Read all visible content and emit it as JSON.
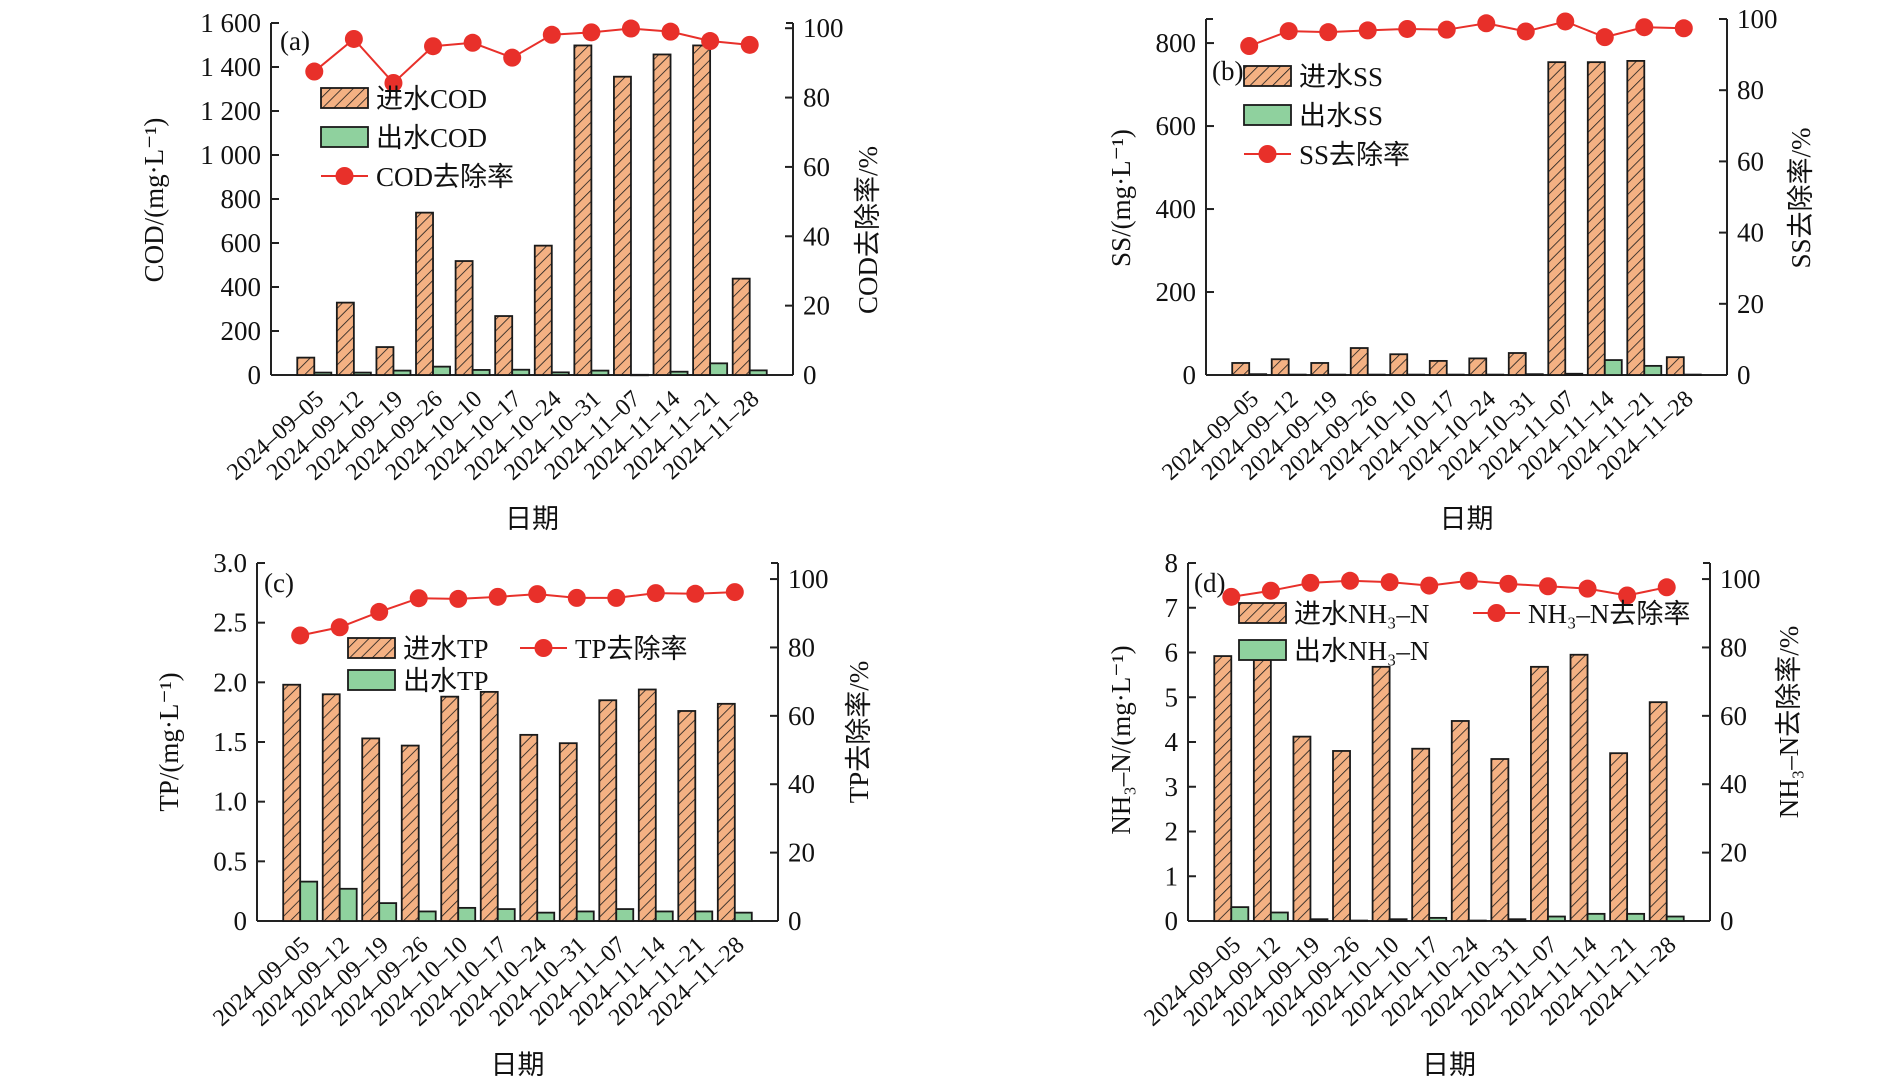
{
  "figure": {
    "x_axis_title": "日期",
    "colors": {
      "influent": "#F4B183",
      "effluent": "#8FD19E",
      "removal": "#E8302A",
      "axis": "#222222"
    }
  },
  "chart_data": [
    {
      "type": "bar",
      "panel": "(a)",
      "categories": [
        "2024-09-05",
        "2024-09-12",
        "2024-09-19",
        "2024-09-26",
        "2024-10-10",
        "2024-10-17",
        "2024-10-24",
        "2024-10-31",
        "2024-11-07",
        "2024-11-14",
        "2024-11-21",
        "2024-11-28"
      ],
      "category_labels": [
        "2024–09–05",
        "2024–09–12",
        "2024–09–19",
        "2024–09–26",
        "2024–10–10",
        "2024–10–17",
        "2024–10–24",
        "2024–10–31",
        "2024–11–07",
        "2024–11–14",
        "2024–11–21",
        "2024–11–28"
      ],
      "xlabel": "日期",
      "ylabel": "COD/(mg·L⁻¹)",
      "ylabel_right": "COD去除率/%",
      "ylim": [
        0,
        1600
      ],
      "yticks": [
        0,
        200,
        400,
        600,
        800,
        1000,
        1200,
        1400,
        1600
      ],
      "ytick_labels": [
        "0",
        "200",
        "400",
        "600",
        "800",
        "1 000",
        "1 200",
        "1 400",
        "1 600"
      ],
      "ylim_right": [
        0,
        101.5
      ],
      "yticks_right": [
        0,
        20,
        40,
        60,
        80,
        100
      ],
      "legend": {
        "position": "upper-left",
        "layout": "column",
        "entries": [
          "进水COD",
          "出水COD",
          "COD去除率"
        ]
      },
      "series": [
        {
          "name": "进水COD",
          "kind": "bar",
          "values": [
            79,
            329,
            127,
            738,
            518,
            268,
            588,
            1498,
            1356,
            1457,
            1498,
            438
          ]
        },
        {
          "name": "出水COD",
          "kind": "bar",
          "values": [
            11,
            11,
            20,
            38,
            23,
            24,
            12,
            20,
            1,
            15,
            53,
            21
          ]
        },
        {
          "name": "COD去除率",
          "kind": "line",
          "axis": "right",
          "values": [
            87.5,
            96.9,
            84.2,
            94.8,
            95.8,
            91.5,
            98.1,
            98.8,
            99.9,
            99.0,
            96.3,
            95.2
          ]
        }
      ]
    },
    {
      "type": "bar",
      "panel": "(b)",
      "categories": [
        "2024-09-05",
        "2024-09-12",
        "2024-09-19",
        "2024-09-26",
        "2024-10-10",
        "2024-10-17",
        "2024-10-24",
        "2024-10-31",
        "2024-11-07",
        "2024-11-14",
        "2024-11-21",
        "2024-11-28"
      ],
      "category_labels": [
        "2024–09–05",
        "2024–09–12",
        "2024–09–19",
        "2024–09–26",
        "2024–10–10",
        "2024–10–17",
        "2024–10–24",
        "2024–10–31",
        "2024–11–07",
        "2024–11–14",
        "2024–11–21",
        "2024–11–28"
      ],
      "xlabel": "日期",
      "ylabel": "SS/(mg·L⁻¹)",
      "ylabel_right": "SS去除率/%",
      "ylim": [
        0,
        858
      ],
      "yticks": [
        0,
        200,
        400,
        600,
        800
      ],
      "ytick_labels": [
        "0",
        "200",
        "400",
        "600",
        "800"
      ],
      "ylim_right": [
        0,
        100
      ],
      "yticks_right": [
        0,
        20,
        40,
        60,
        80,
        100
      ],
      "legend": {
        "position": "upper-left",
        "layout": "column",
        "entries": [
          "进水SS",
          "出水SS",
          "SS去除率"
        ]
      },
      "series": [
        {
          "name": "进水SS",
          "kind": "bar",
          "values": [
            29,
            38,
            29,
            65,
            50,
            34,
            40,
            53,
            754,
            754,
            757,
            43
          ]
        },
        {
          "name": "出水SS",
          "kind": "bar",
          "values": [
            2,
            1,
            1,
            1,
            1,
            1,
            1,
            2,
            3,
            36,
            22,
            1
          ]
        },
        {
          "name": "SS去除率",
          "kind": "line",
          "axis": "right",
          "values": [
            92.4,
            96.6,
            96.3,
            96.8,
            97.2,
            97.0,
            98.8,
            96.5,
            99.3,
            94.9,
            97.7,
            97.4
          ]
        }
      ]
    },
    {
      "type": "bar",
      "panel": "(c)",
      "categories": [
        "2024-09-05",
        "2024-09-12",
        "2024-09-19",
        "2024-09-26",
        "2024-10-10",
        "2024-10-17",
        "2024-10-24",
        "2024-10-31",
        "2024-11-07",
        "2024-11-14",
        "2024-11-21",
        "2024-11-28"
      ],
      "category_labels": [
        "2024–09–05",
        "2024–09–12",
        "2024–09–19",
        "2024–09–26",
        "2024–10–10",
        "2024–10–17",
        "2024–10–24",
        "2024–10–31",
        "2024–11–07",
        "2024–11–14",
        "2024–11–21",
        "2024–11–28"
      ],
      "xlabel": "日期",
      "ylabel": "TP/(mg·L⁻¹)",
      "ylabel_right": "TP去除率/%",
      "ylim": [
        0,
        3.0
      ],
      "yticks": [
        0,
        0.5,
        1.0,
        1.5,
        2.0,
        2.5,
        3.0
      ],
      "ytick_labels": [
        "0",
        "0.5",
        "1.0",
        "1.5",
        "2.0",
        "2.5",
        "3.0"
      ],
      "ylim_right": [
        0,
        104.7
      ],
      "yticks_right": [
        0,
        20,
        40,
        60,
        80,
        100
      ],
      "legend": {
        "position": "upper-center",
        "layout": "split",
        "entries": [
          "进水TP",
          "出水TP",
          "TP去除率"
        ]
      },
      "series": [
        {
          "name": "进水TP",
          "kind": "bar",
          "values": [
            1.98,
            1.9,
            1.53,
            1.47,
            1.88,
            1.92,
            1.56,
            1.49,
            1.85,
            1.94,
            1.76,
            1.82
          ]
        },
        {
          "name": "出水TP",
          "kind": "bar",
          "values": [
            0.33,
            0.27,
            0.15,
            0.08,
            0.11,
            0.1,
            0.07,
            0.08,
            0.1,
            0.08,
            0.08,
            0.07
          ]
        },
        {
          "name": "TP去除率",
          "kind": "line",
          "axis": "right",
          "values": [
            83.5,
            85.9,
            90.4,
            94.4,
            94.2,
            94.8,
            95.6,
            94.5,
            94.5,
            95.9,
            95.7,
            96.2
          ]
        }
      ]
    },
    {
      "type": "bar",
      "panel": "(d)",
      "categories": [
        "2024-09-05",
        "2024-09-12",
        "2024-09-19",
        "2024-09-26",
        "2024-10-10",
        "2024-10-17",
        "2024-10-24",
        "2024-10-31",
        "2024-11-07",
        "2024-11-14",
        "2024-11-21",
        "2024-11-28"
      ],
      "category_labels": [
        "2024–09–05",
        "2024–09–12",
        "2024–09–19",
        "2024–09–26",
        "2024–10–10",
        "2024–10–17",
        "2024–10–24",
        "2024–10–31",
        "2024–11–07",
        "2024–11–14",
        "2024–11–21",
        "2024–11–28"
      ],
      "xlabel": "日期",
      "ylabel": "NH₃–N/(mg·L⁻¹)",
      "ylabel_right": "NH₃–N去除率/%",
      "ylim": [
        0,
        8
      ],
      "yticks": [
        0,
        1,
        2,
        3,
        4,
        5,
        6,
        7,
        8
      ],
      "ytick_labels": [
        "0",
        "1",
        "2",
        "3",
        "4",
        "5",
        "6",
        "7",
        "8"
      ],
      "ylim_right": [
        0,
        104.7
      ],
      "yticks_right": [
        0,
        20,
        40,
        60,
        80,
        100
      ],
      "legend": {
        "position": "upper-center",
        "layout": "split",
        "entries": [
          "进水NH₃–N",
          "出水NH₃–N",
          "NH₃–N去除率"
        ]
      },
      "series": [
        {
          "name": "进水NH₃–N",
          "kind": "bar",
          "values": [
            5.92,
            5.83,
            4.12,
            3.8,
            5.68,
            3.85,
            4.47,
            3.62,
            5.68,
            5.95,
            3.75,
            4.89
          ]
        },
        {
          "name": "出水NH₃–N",
          "kind": "bar",
          "values": [
            0.31,
            0.19,
            0.04,
            0.01,
            0.04,
            0.07,
            0.01,
            0.04,
            0.1,
            0.16,
            0.16,
            0.1
          ]
        },
        {
          "name": "NH₃–N去除率",
          "kind": "line",
          "axis": "right",
          "values": [
            94.8,
            96.6,
            98.9,
            99.5,
            99.1,
            98.1,
            99.5,
            98.6,
            97.9,
            97.2,
            95.2,
            97.6
          ]
        }
      ]
    }
  ]
}
